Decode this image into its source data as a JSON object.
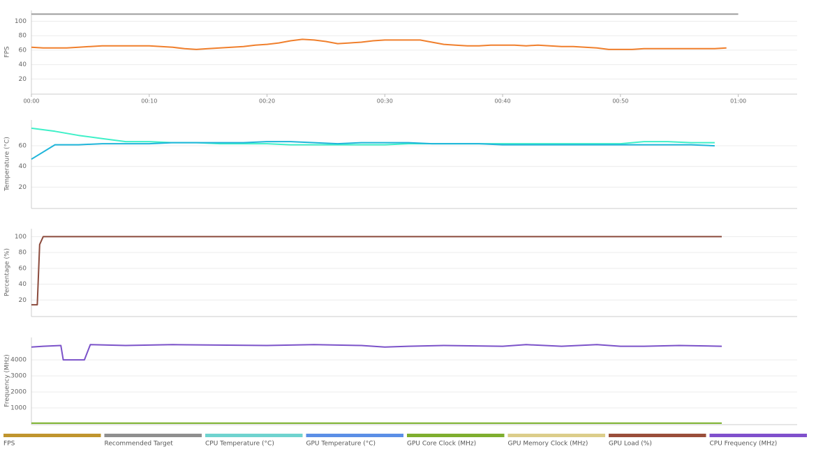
{
  "chart_data": [
    {
      "type": "line",
      "ylabel": "FPS",
      "xlim": [
        0,
        65
      ],
      "ylim": [
        0,
        115
      ],
      "yticks": [
        20,
        40,
        60,
        80,
        100
      ],
      "grid": true,
      "xticks": [
        {
          "value": 0,
          "label": "00:00"
        },
        {
          "value": 10,
          "label": "00:10"
        },
        {
          "value": 20,
          "label": "00:20"
        },
        {
          "value": 30,
          "label": "00:30"
        },
        {
          "value": 40,
          "label": "00:40"
        },
        {
          "value": 50,
          "label": "00:50"
        },
        {
          "value": 60,
          "label": "01:00"
        }
      ],
      "series": [
        {
          "color": "#9e9e9e",
          "x": [
            0,
            60
          ],
          "values": [
            110,
            110
          ]
        },
        {
          "color": "#f07f2c",
          "x": [
            0,
            1,
            2,
            3,
            4,
            5,
            6,
            7,
            8,
            9,
            10,
            11,
            12,
            13,
            14,
            15,
            16,
            17,
            18,
            19,
            20,
            21,
            22,
            23,
            24,
            25,
            26,
            27,
            28,
            29,
            30,
            31,
            32,
            33,
            34,
            35,
            36,
            37,
            38,
            39,
            40,
            41,
            42,
            43,
            44,
            45,
            46,
            47,
            48,
            49,
            50,
            51,
            52,
            53,
            54,
            55,
            56,
            57,
            58,
            59
          ],
          "values": [
            64,
            63,
            63,
            63,
            64,
            65,
            66,
            66,
            66,
            66,
            66,
            65,
            64,
            62,
            61,
            62,
            63,
            64,
            65,
            67,
            68,
            70,
            73,
            75,
            74,
            72,
            69,
            70,
            71,
            73,
            74,
            74,
            74,
            74,
            71,
            68,
            67,
            66,
            66,
            67,
            67,
            67,
            66,
            67,
            66,
            65,
            65,
            64,
            63,
            61,
            61,
            61,
            62,
            62,
            62,
            62,
            62,
            62,
            62,
            63
          ]
        }
      ]
    },
    {
      "type": "line",
      "ylabel": "Temperature (°C)",
      "xlim": [
        0,
        65
      ],
      "ylim": [
        0,
        85
      ],
      "yticks": [
        20,
        40,
        60
      ],
      "grid": true,
      "series": [
        {
          "color": "#3ef0c8",
          "x": [
            0,
            2,
            4,
            6,
            8,
            10,
            12,
            14,
            16,
            18,
            20,
            22,
            24,
            26,
            28,
            30,
            32,
            34,
            36,
            38,
            40,
            42,
            44,
            46,
            48,
            50,
            52,
            54,
            56,
            58
          ],
          "values": [
            77,
            74,
            70,
            67,
            64,
            64,
            63,
            63,
            62,
            62,
            62,
            61,
            61,
            61,
            61,
            61,
            62,
            62,
            62,
            62,
            62,
            62,
            62,
            62,
            62,
            62,
            64,
            64,
            63,
            63
          ]
        },
        {
          "color": "#1fb5da",
          "x": [
            0,
            2,
            4,
            6,
            8,
            10,
            12,
            14,
            16,
            18,
            20,
            22,
            24,
            26,
            28,
            30,
            32,
            34,
            36,
            38,
            40,
            42,
            44,
            46,
            48,
            50,
            52,
            54,
            56,
            58
          ],
          "values": [
            47,
            61,
            61,
            62,
            62,
            62,
            63,
            63,
            63,
            63,
            64,
            64,
            63,
            62,
            63,
            63,
            63,
            62,
            62,
            62,
            61,
            61,
            61,
            61,
            61,
            61,
            61,
            61,
            61,
            60
          ]
        }
      ]
    },
    {
      "type": "line",
      "ylabel": "Percentage (%)",
      "xlim": [
        0,
        65
      ],
      "ylim": [
        0,
        110
      ],
      "yticks": [
        20,
        40,
        60,
        80,
        100
      ],
      "grid": true,
      "series": [
        {
          "color": "#8b4a3c",
          "x": [
            0,
            0.5,
            0.7,
            1,
            58.6
          ],
          "values": [
            14,
            14,
            90,
            100,
            100
          ]
        }
      ]
    },
    {
      "type": "line",
      "ylabel": "Frequency (MHz)",
      "xlim": [
        0,
        65
      ],
      "ylim": [
        0,
        5400
      ],
      "yticks": [
        1000,
        2000,
        3000,
        4000
      ],
      "grid": true,
      "series": [
        {
          "color": "#78b12a",
          "x": [
            0,
            58.6
          ],
          "values": [
            50,
            50
          ]
        },
        {
          "color": "#7b52c9",
          "x": [
            0,
            1,
            2.5,
            2.7,
            3.5,
            4.5,
            5,
            8,
            12,
            20,
            24,
            28,
            30,
            32,
            35,
            40,
            42,
            45,
            48,
            50,
            52,
            55,
            58.6
          ],
          "values": [
            4800,
            4850,
            4900,
            4000,
            4000,
            4000,
            4950,
            4900,
            4950,
            4900,
            4950,
            4900,
            4800,
            4850,
            4900,
            4850,
            4950,
            4850,
            4950,
            4850,
            4850,
            4900,
            4850
          ]
        }
      ]
    }
  ],
  "legend": [
    {
      "label": "FPS",
      "color": "#c0952e"
    },
    {
      "label": "Recommended Target",
      "color": "#8f8f8f"
    },
    {
      "label": "CPU Temperature (°C)",
      "color": "#6fd3cf"
    },
    {
      "label": "GPU Temperature (°C)",
      "color": "#5b8fe6"
    },
    {
      "label": "GPU Core Clock (MHz)",
      "color": "#7fae2f"
    },
    {
      "label": "GPU Memory Clock (MHz)",
      "color": "#dccd8a"
    },
    {
      "label": "GPU Load (%)",
      "color": "#9a4e3a"
    },
    {
      "label": "CPU Frequency (MHz)",
      "color": "#8050cc"
    }
  ]
}
